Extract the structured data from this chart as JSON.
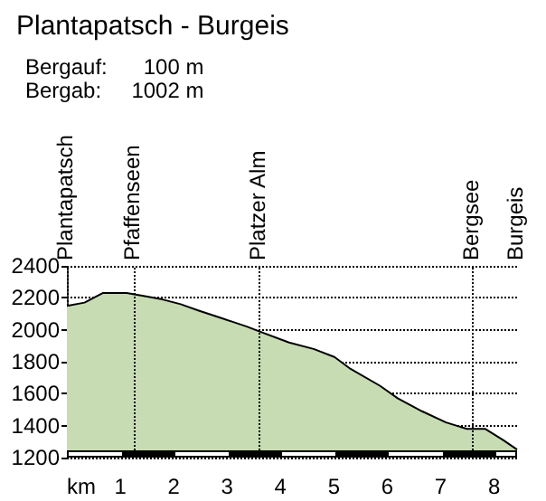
{
  "chart_data": {
    "type": "area",
    "title": "Plantapatsch - Burgeis",
    "annotations": [
      "Bergauf:      100 m",
      "Bergab:     1002 m",
      "Plantapatsch",
      "Burgeis"
    ],
    "xlabel": "km",
    "x": [
      0,
      0.33,
      0.67,
      1.12,
      1.46,
      1.79,
      2.13,
      2.47,
      2.92,
      3.37,
      3.6,
      4.16,
      4.62,
      5.01,
      5.29,
      5.86,
      6.2,
      6.65,
      7.1,
      7.49,
      7.83,
      8.17,
      8.43
    ],
    "series": [
      {
        "color": "#c8dcb4",
        "values": [
          2150,
          2170,
          2230,
          2230,
          2210,
          2190,
          2160,
          2120,
          2070,
          2020,
          1990,
          1920,
          1880,
          1830,
          1760,
          1650,
          1570,
          1490,
          1420,
          1380,
          1380,
          1310,
          1250
        ]
      }
    ],
    "xlim": [
      0,
      8.43
    ],
    "xticks": [
      1,
      2,
      3,
      4,
      5,
      6,
      7,
      8
    ],
    "ylim": [
      1200,
      2400
    ],
    "yticks": [
      1200,
      1400,
      1600,
      1800,
      2000,
      2200,
      2400
    ],
    "grid": "y",
    "ref_lines": [
      {
        "axis": "x",
        "value": 1.25,
        "label": "Pfaffenseen",
        "line_style": "dotted"
      },
      {
        "axis": "x",
        "value": 3.6,
        "label": "Platzer Alm",
        "line_style": "dotted"
      },
      {
        "axis": "x",
        "value": 7.6,
        "label": "Bergsee",
        "line_style": "dotted"
      }
    ]
  }
}
